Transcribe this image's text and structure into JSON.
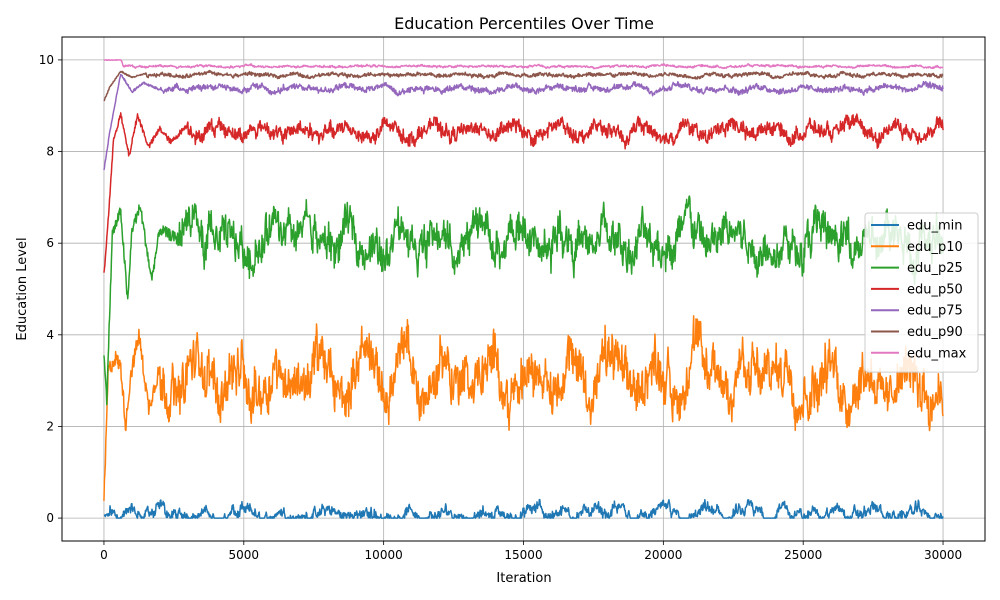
{
  "chart_data": {
    "type": "line",
    "title": "Education Percentiles Over Time",
    "xlabel": "Iteration",
    "ylabel": "Education Level",
    "xlim": [
      -1500,
      31500
    ],
    "ylim": [
      -0.5,
      10.5
    ],
    "xticks": [
      0,
      5000,
      10000,
      15000,
      20000,
      25000,
      30000
    ],
    "yticks": [
      0,
      2,
      4,
      6,
      8,
      10
    ],
    "grid": true,
    "legend_position": "right",
    "x_range": [
      0,
      30000
    ],
    "series": [
      {
        "name": "edu_min",
        "color": "#1f77b4",
        "steady": 0.08,
        "noise": 0.07,
        "spike": 0.15,
        "warmup": [
          [
            0,
            0.05
          ],
          [
            200,
            0.08
          ]
        ]
      },
      {
        "name": "edu_p10",
        "color": "#ff7f0e",
        "steady": 3.1,
        "noise": 0.35,
        "spike": 0.45,
        "warmup": [
          [
            0,
            0.4
          ],
          [
            60,
            1.4
          ],
          [
            150,
            3.2
          ],
          [
            400,
            3.5
          ],
          [
            600,
            3.3
          ],
          [
            780,
            2.0
          ],
          [
            950,
            3.1
          ],
          [
            1250,
            4.0
          ],
          [
            1600,
            2.4
          ],
          [
            2000,
            3.3
          ]
        ]
      },
      {
        "name": "edu_p25",
        "color": "#2ca02c",
        "steady": 6.05,
        "noise": 0.25,
        "spike": 0.4,
        "warmup": [
          [
            0,
            3.5
          ],
          [
            100,
            2.6
          ],
          [
            300,
            6.2
          ],
          [
            600,
            6.7
          ],
          [
            850,
            4.7
          ],
          [
            1000,
            6.3
          ],
          [
            1300,
            6.8
          ],
          [
            1700,
            5.2
          ],
          [
            2000,
            6.3
          ],
          [
            2600,
            6.1
          ]
        ]
      },
      {
        "name": "edu_p50",
        "color": "#d62728",
        "steady": 8.45,
        "noise": 0.12,
        "spike": 0.12,
        "warmup": [
          [
            0,
            5.3
          ],
          [
            150,
            6.5
          ],
          [
            350,
            8.3
          ],
          [
            600,
            8.8
          ],
          [
            900,
            7.9
          ],
          [
            1200,
            8.8
          ],
          [
            1600,
            8.1
          ],
          [
            2000,
            8.5
          ],
          [
            2400,
            8.2
          ],
          [
            3000,
            8.6
          ]
        ]
      },
      {
        "name": "edu_p75",
        "color": "#9467bd",
        "steady": 9.38,
        "noise": 0.05,
        "spike": 0.05,
        "warmup": [
          [
            0,
            7.6
          ],
          [
            200,
            8.4
          ],
          [
            600,
            9.7
          ],
          [
            1000,
            9.3
          ],
          [
            1400,
            9.5
          ],
          [
            2000,
            9.35
          ]
        ]
      },
      {
        "name": "edu_p90",
        "color": "#8c564b",
        "steady": 9.67,
        "noise": 0.03,
        "spike": 0.03,
        "warmup": [
          [
            0,
            9.1
          ],
          [
            200,
            9.4
          ],
          [
            600,
            9.75
          ],
          [
            1000,
            9.62
          ],
          [
            1500,
            9.7
          ]
        ]
      },
      {
        "name": "edu_max",
        "color": "#e377c2",
        "steady": 9.86,
        "noise": 0.015,
        "spike": 0.02,
        "warmup": [
          [
            0,
            10.0
          ],
          [
            620,
            10.0
          ],
          [
            700,
            9.85
          ]
        ]
      }
    ]
  }
}
